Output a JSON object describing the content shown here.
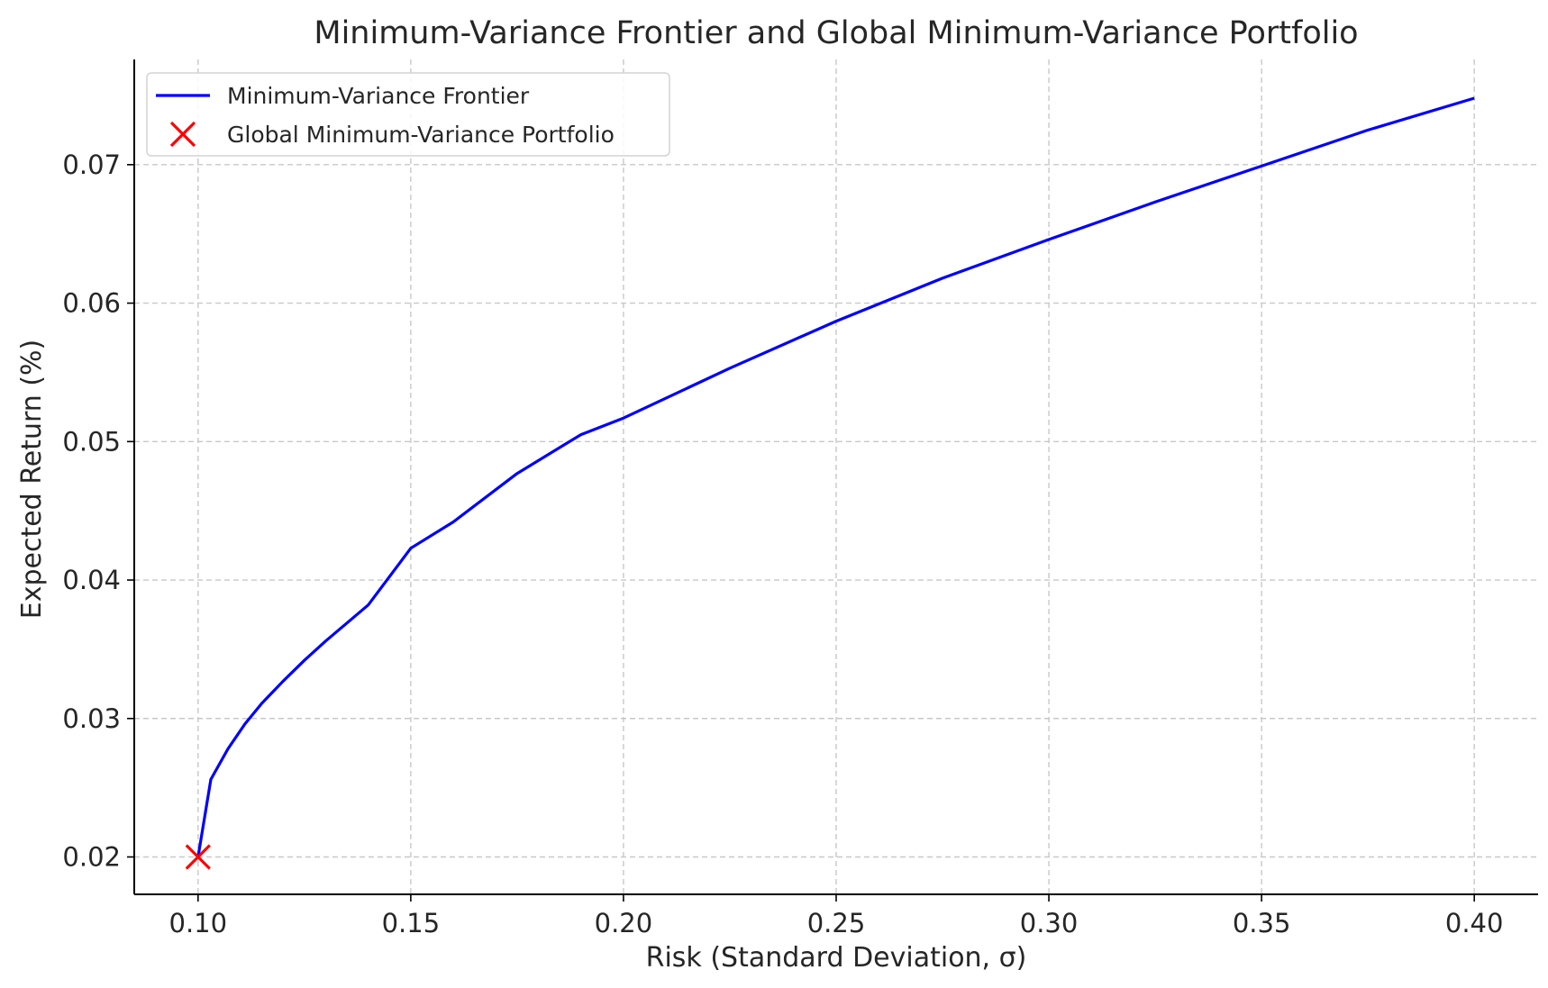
{
  "chart_data": {
    "type": "line",
    "title": "Minimum-Variance Frontier and Global Minimum-Variance Portfolio",
    "xlabel": "Risk (Standard Deviation, σ)",
    "ylabel": "Expected Return (%)",
    "xlim": [
      0.085,
      0.415
    ],
    "ylim": [
      0.0173,
      0.0776
    ],
    "xticks": [
      0.1,
      0.15,
      0.2,
      0.25,
      0.3,
      0.35,
      0.4
    ],
    "xtick_labels": [
      "0.10",
      "0.15",
      "0.20",
      "0.25",
      "0.30",
      "0.35",
      "0.40"
    ],
    "yticks": [
      0.02,
      0.03,
      0.04,
      0.05,
      0.06,
      0.07
    ],
    "ytick_labels": [
      "0.02",
      "0.03",
      "0.04",
      "0.05",
      "0.06",
      "0.07"
    ],
    "grid": true,
    "legend_position": "top-left",
    "series": [
      {
        "name": "Minimum-Variance Frontier",
        "kind": "line",
        "color": "#0000ff",
        "x": [
          0.1,
          0.103,
          0.107,
          0.111,
          0.115,
          0.12,
          0.125,
          0.13,
          0.14,
          0.15,
          0.16,
          0.175,
          0.19,
          0.2,
          0.225,
          0.25,
          0.275,
          0.3,
          0.325,
          0.35,
          0.375,
          0.4
        ],
        "y": [
          0.02,
          0.0256,
          0.0278,
          0.0296,
          0.0311,
          0.0327,
          0.0342,
          0.0356,
          0.0382,
          0.0423,
          0.0442,
          0.0477,
          0.0505,
          0.0517,
          0.0553,
          0.0587,
          0.0618,
          0.0646,
          0.0673,
          0.0699,
          0.0725,
          0.0748
        ]
      },
      {
        "name": "Global Minimum-Variance Portfolio",
        "kind": "marker",
        "marker": "x",
        "color": "#ff0000",
        "x": [
          0.1
        ],
        "y": [
          0.02
        ]
      }
    ]
  }
}
